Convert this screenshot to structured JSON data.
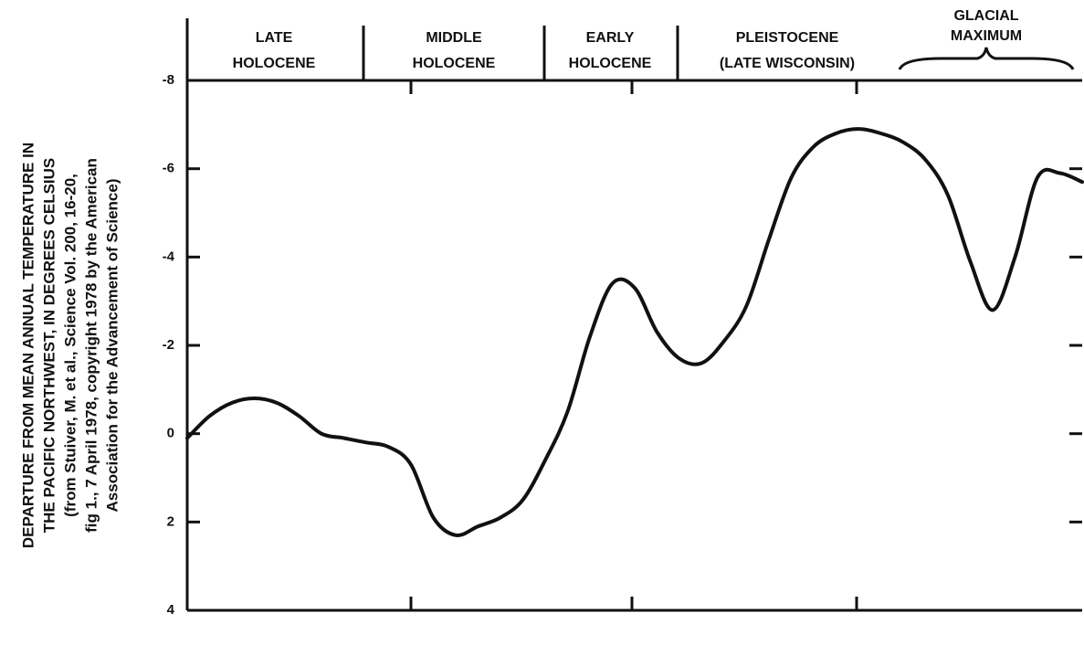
{
  "chart_data": {
    "type": "line",
    "y_label": [
      "DEPARTURE FROM MEAN ANNUAL TEMPERATURE IN",
      "THE PACIFIC NORTHWEST, IN DEGREES CELSIUS",
      "(from Stuiver, M. et al., Science Vol. 200, 16-20,",
      "fig 1., 7 April 1978, copyright 1978 by the American",
      "Association for the Advancement of Science)"
    ],
    "periods": [
      [
        "LATE",
        "HOLOCENE"
      ],
      [
        "MIDDLE",
        "HOLOCENE"
      ],
      [
        "EARLY",
        "HOLOCENE"
      ],
      [
        "PLEISTOCENE",
        "(LATE WISCONSIN)"
      ],
      [
        "GLACIAL",
        "MAXIMUM"
      ]
    ],
    "categories": [
      null,
      null,
      null,
      null,
      null,
      null,
      null,
      null,
      null,
      null,
      null,
      null,
      null,
      null,
      null,
      null,
      null,
      null,
      null,
      null,
      null,
      null,
      null,
      null,
      null,
      null,
      null,
      null,
      null,
      null,
      null,
      null,
      null,
      null,
      null,
      null,
      null,
      null,
      null,
      null,
      null
    ],
    "values": [
      0.1,
      -0.4,
      -0.7,
      -0.8,
      -0.7,
      -0.4,
      0,
      0.1,
      0.2,
      0.3,
      0.7,
      1.9,
      2.3,
      2.1,
      1.9,
      1.5,
      0.6,
      -0.5,
      -2.2,
      -3.4,
      -3.3,
      -2.3,
      -1.7,
      -1.6,
      -2.1,
      -2.9,
      -4.4,
      -5.8,
      -6.5,
      -6.8,
      -6.9,
      -6.8,
      -6.6,
      -6.2,
      -5.4,
      -3.9,
      -2.8,
      -4.0,
      -5.8,
      -5.9,
      -5.7
    ],
    "color": "#111111",
    "ylim": [
      -8,
      4
    ],
    "yticks": [
      -8,
      -6,
      -4,
      -2,
      0,
      2,
      4
    ],
    "y_inverted": true
  }
}
